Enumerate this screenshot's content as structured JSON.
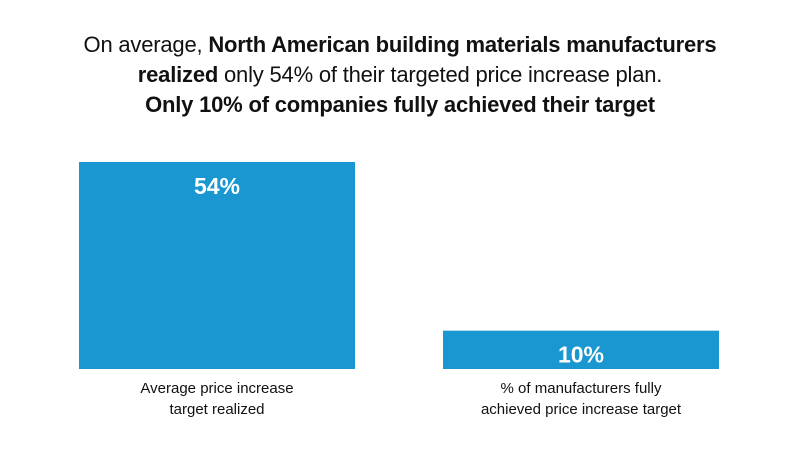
{
  "headline": {
    "line1_normal": "On average, ",
    "line1_bold": "North American building materials manufacturers",
    "line2_bold": "realized",
    "line2_normal": " only 54% of their targeted price increase plan.",
    "line3_bold": "Only 10% of companies fully achieved their target"
  },
  "colors": {
    "bar": "#1a96d0",
    "bar_label": "#ffffff",
    "text": "#111111"
  },
  "chart_data": {
    "type": "bar",
    "categories": [
      "Average price increase target realized",
      "% of manufacturers fully achieved price increase target"
    ],
    "category_lines": [
      [
        "Average price increase",
        "target realized"
      ],
      [
        "% of manufacturers fully",
        "achieved price increase target"
      ]
    ],
    "values": [
      54,
      10
    ],
    "data_labels": [
      "54%",
      "10%"
    ],
    "ylim": [
      0,
      54
    ],
    "grid": false,
    "legend": "none"
  }
}
